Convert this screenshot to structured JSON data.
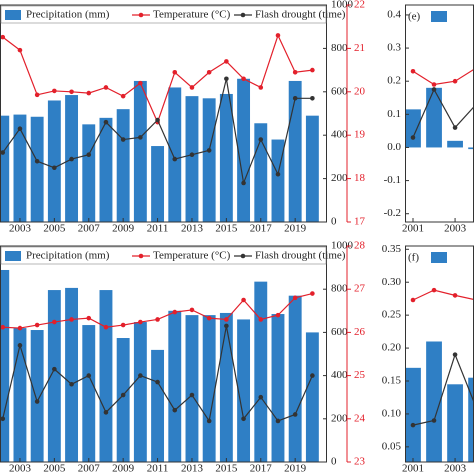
{
  "chart_data": [
    {
      "type": "bar-line",
      "x": [
        2002,
        2003,
        2004,
        2005,
        2006,
        2007,
        2008,
        2009,
        2010,
        2011,
        2012,
        2013,
        2014,
        2015,
        2016,
        2017,
        2018,
        2019,
        2020
      ],
      "xlim": [
        2001.84,
        2020.85
      ],
      "xticks": [
        2003,
        2005,
        2007,
        2009,
        2011,
        2013,
        2015,
        2017,
        2019
      ],
      "ylim": [
        0,
        10
      ],
      "y2lim": [
        0,
        1000
      ],
      "y2ticks": [
        0,
        200,
        400,
        600,
        800,
        1000
      ],
      "y3lim": [
        17,
        22
      ],
      "y3ticks": [
        17,
        18,
        19,
        20,
        21,
        22
      ],
      "series": [
        {
          "name": "Precipitation (mm)",
          "kind": "bar",
          "axis": "y2",
          "color": "#2f7fc5",
          "values": [
            490,
            495,
            485,
            560,
            585,
            450,
            480,
            520,
            650,
            350,
            620,
            580,
            570,
            590,
            660,
            455,
            380,
            650,
            490
          ]
        },
        {
          "name": "Temperature (°C)",
          "kind": "line",
          "axis": "y3",
          "color": "#e3202b",
          "values": [
            21.26,
            20.96,
            19.93,
            20.02,
            20.0,
            19.97,
            20.1,
            19.9,
            20.2,
            19.3,
            20.45,
            20.1,
            20.45,
            20.7,
            20.3,
            20.1,
            21.3,
            20.45,
            20.5
          ]
        },
        {
          "name": "Flash drought (time)",
          "kind": "line",
          "axis": "y",
          "color": "#333333",
          "values": [
            3.2,
            4.3,
            2.8,
            2.5,
            2.9,
            3.1,
            4.6,
            3.8,
            3.9,
            4.7,
            2.9,
            3.1,
            3.3,
            6.6,
            1.8,
            3.8,
            2.2,
            5.7,
            5.7
          ]
        }
      ]
    },
    {
      "type": "bar-line",
      "panel_label": "(e)",
      "x": [
        2001,
        2002,
        2003,
        2004
      ],
      "xlim": [
        2000.62,
        2003.9
      ],
      "xticks": [
        2001,
        2003
      ],
      "ylim": [
        -0.225,
        0.43
      ],
      "yticks": [
        -0.2,
        -0.1,
        {
          "value": 0,
          "label": "0.0"
        },
        0.1,
        0.2,
        0.3,
        0.4
      ],
      "series": [
        {
          "kind": "bar",
          "axis": "y",
          "color": "#2f7fc5",
          "values": [
            0.115,
            0.18,
            0.02,
            -0.005
          ]
        },
        {
          "kind": "line",
          "axis": "y",
          "color": "#e3202b",
          "values": [
            0.23,
            0.19,
            0.2,
            0.24
          ]
        },
        {
          "kind": "line",
          "axis": "y",
          "color": "#333333",
          "values": [
            0.03,
            0.175,
            0.06,
            0.13
          ]
        }
      ]
    },
    {
      "type": "bar-line",
      "x": [
        2002,
        2003,
        2004,
        2005,
        2006,
        2007,
        2008,
        2009,
        2010,
        2011,
        2012,
        2013,
        2014,
        2015,
        2016,
        2017,
        2018,
        2019,
        2020
      ],
      "xlim": [
        2001.84,
        2020.85
      ],
      "xticks": [
        2003,
        2005,
        2007,
        2009,
        2011,
        2013,
        2015,
        2017,
        2019
      ],
      "ylim": [
        0,
        10
      ],
      "y2lim": [
        0,
        1000
      ],
      "y2ticks": [
        0,
        200,
        400,
        600,
        800,
        1000
      ],
      "y3lim": [
        23,
        28
      ],
      "y3ticks": [
        23,
        24,
        25,
        26,
        27,
        28
      ],
      "series": [
        {
          "name": "Precipitation (mm)",
          "kind": "bar",
          "axis": "y2",
          "color": "#2f7fc5",
          "values": [
            889,
            620,
            611,
            796,
            806,
            634,
            796,
            574,
            648,
            519,
            700,
            680,
            680,
            690,
            660,
            835,
            685,
            770,
            600
          ]
        },
        {
          "name": "Temperature (°C)",
          "kind": "line",
          "axis": "y3",
          "color": "#e3202b",
          "values": [
            26.12,
            26.1,
            26.17,
            26.24,
            26.3,
            26.33,
            26.12,
            26.17,
            26.24,
            26.3,
            26.47,
            26.52,
            26.33,
            26.3,
            26.75,
            26.3,
            26.4,
            26.8,
            26.9
          ]
        },
        {
          "name": "Flash drought (time)",
          "kind": "line",
          "axis": "y",
          "color": "#333333",
          "values": [
            2.0,
            5.4,
            2.8,
            4.3,
            3.6,
            4.0,
            2.3,
            3.1,
            4.0,
            3.7,
            2.4,
            3.1,
            1.9,
            6.3,
            2.0,
            3.0,
            1.9,
            2.2,
            4.0
          ]
        }
      ]
    },
    {
      "type": "bar-line",
      "panel_label": "(f)",
      "x": [
        2001,
        2002,
        2003,
        2004
      ],
      "xlim": [
        2000.62,
        2003.9
      ],
      "xticks": [
        2001,
        2003
      ],
      "ylim": [
        0.027,
        0.355
      ],
      "yticks": [
        0.05,
        {
          "value": 0.1,
          "label": "0.10"
        },
        0.15,
        {
          "value": 0.2,
          "label": "0.20"
        },
        0.25,
        {
          "value": 0.3,
          "label": "0.30"
        },
        0.35
      ],
      "series": [
        {
          "kind": "bar",
          "axis": "y",
          "color": "#2f7fc5",
          "values": [
            0.17,
            0.21,
            0.145,
            0.155
          ]
        },
        {
          "kind": "line",
          "axis": "y",
          "color": "#e3202b",
          "values": [
            0.273,
            0.288,
            0.28,
            0.273
          ]
        },
        {
          "kind": "line",
          "axis": "y",
          "color": "#333333",
          "values": [
            0.083,
            0.09,
            0.19,
            0.11
          ]
        }
      ]
    }
  ]
}
